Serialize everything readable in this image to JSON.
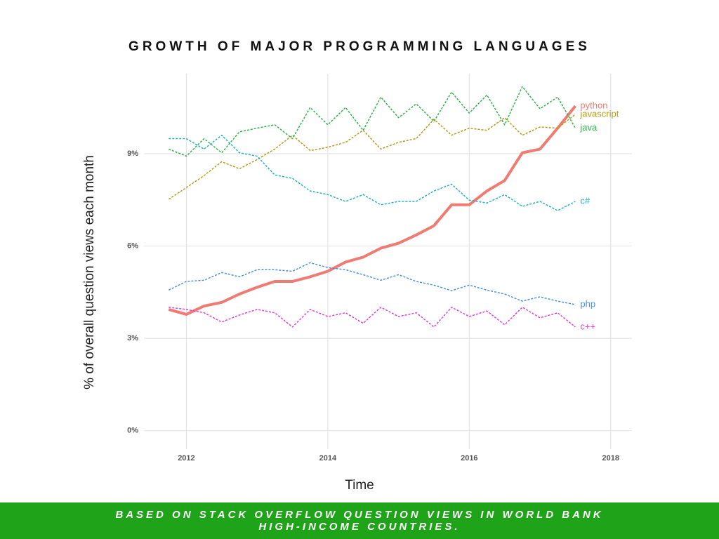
{
  "chart_data": {
    "type": "line",
    "title": "GROWTH OF MAJOR PROGRAMMING LANGUAGES",
    "x_label": "Time",
    "y_label": "% of overall question views each month",
    "footnote": "BASED ON STACK OVERFLOW QUESTION VIEWS IN WORLD BANK HIGH-INCOME COUNTRIES.",
    "x": [
      2011.75,
      2012.0,
      2012.25,
      2012.5,
      2012.75,
      2013.0,
      2013.25,
      2013.5,
      2013.75,
      2014.0,
      2014.25,
      2014.5,
      2014.75,
      2015.0,
      2015.25,
      2015.5,
      2015.75,
      2016.0,
      2016.25,
      2016.5,
      2016.75,
      2017.0,
      2017.25,
      2017.5
    ],
    "xlim": [
      2011.4,
      2018.3
    ],
    "xticks": [
      2012,
      2014,
      2016,
      2018
    ],
    "ylim": [
      -0.6,
      11.6
    ],
    "yticks": [
      {
        "value": 0,
        "label": "0%"
      },
      {
        "value": 3,
        "label": "3%"
      },
      {
        "value": 6,
        "label": "6%"
      },
      {
        "value": 9,
        "label": "9%"
      }
    ],
    "grid": true,
    "series": [
      {
        "name": "python",
        "color": "#f07b73",
        "width": 4,
        "dashed": false,
        "values": [
          3.94,
          3.78,
          4.05,
          4.17,
          4.44,
          4.66,
          4.85,
          4.85,
          5.0,
          5.18,
          5.48,
          5.64,
          5.93,
          6.09,
          6.36,
          6.66,
          7.34,
          7.34,
          7.79,
          8.13,
          9.03,
          9.15,
          9.83,
          10.55
        ]
      },
      {
        "name": "javascript",
        "color": "#b59a1a",
        "width": 1.5,
        "dashed": true,
        "values": [
          7.52,
          7.9,
          8.29,
          8.74,
          8.51,
          8.81,
          9.15,
          9.6,
          9.1,
          9.21,
          9.37,
          9.76,
          9.15,
          9.37,
          9.49,
          10.12,
          9.6,
          9.83,
          9.76,
          10.17,
          9.6,
          9.87,
          9.83,
          10.28
        ]
      },
      {
        "name": "java",
        "color": "#2fb34a",
        "width": 1.5,
        "dashed": true,
        "values": [
          9.15,
          8.92,
          9.49,
          9.03,
          9.71,
          9.83,
          9.94,
          9.49,
          10.5,
          9.94,
          10.5,
          9.76,
          10.84,
          10.17,
          10.62,
          10.05,
          11.0,
          10.32,
          10.91,
          9.94,
          11.18,
          10.46,
          10.84,
          9.83
        ]
      },
      {
        "name": "c#",
        "color": "#1fb3bf",
        "width": 1.5,
        "dashed": true,
        "values": [
          9.49,
          9.49,
          9.15,
          9.6,
          9.03,
          8.92,
          8.31,
          8.2,
          7.79,
          7.67,
          7.45,
          7.67,
          7.34,
          7.45,
          7.45,
          7.79,
          8.01,
          7.49,
          7.4,
          7.67,
          7.29,
          7.45,
          7.15,
          7.45
        ]
      },
      {
        "name": "php",
        "color": "#4a90e0",
        "width": 1.5,
        "dashed": true,
        "values": [
          4.57,
          4.85,
          4.89,
          5.14,
          5.0,
          5.23,
          5.23,
          5.18,
          5.46,
          5.3,
          5.23,
          5.07,
          4.89,
          5.07,
          4.85,
          4.73,
          4.55,
          4.73,
          4.57,
          4.44,
          4.21,
          4.35,
          4.21,
          4.1
        ]
      },
      {
        "name": "c++",
        "color": "#e040d8",
        "width": 1.5,
        "dashed": true,
        "values": [
          4.01,
          3.94,
          3.83,
          3.53,
          3.76,
          3.94,
          3.83,
          3.37,
          3.94,
          3.71,
          3.83,
          3.49,
          4.01,
          3.71,
          3.83,
          3.37,
          4.01,
          3.71,
          3.89,
          3.44,
          4.01,
          3.67,
          3.83,
          3.37
        ]
      }
    ]
  }
}
